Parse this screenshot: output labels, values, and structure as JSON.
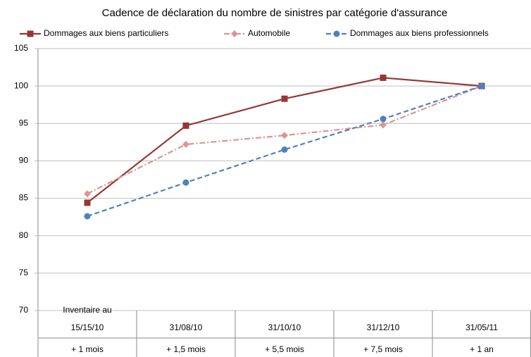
{
  "chart_data": {
    "type": "line",
    "title": "Cadence de déclaration du nombre de sinistres par catégorie d'assurance",
    "categories": [
      [
        "Inventaire au",
        "15/15/10"
      ],
      [
        "31/08/10"
      ],
      [
        "31/10/10"
      ],
      [
        "31/12/10"
      ],
      [
        "31/05/11"
      ]
    ],
    "periods": [
      "+ 1 mois",
      "+ 1,5 mois",
      "+ 5,5 mois",
      "+ 7,5 mois",
      "+ 1 an"
    ],
    "series": [
      {
        "name": "Dommages aux biens particuliers",
        "color": "#953735",
        "marker": "square",
        "dash": "solid",
        "values": [
          84.4,
          94.7,
          98.3,
          101.1,
          100
        ]
      },
      {
        "name": "Automobile",
        "color": "#d99694",
        "marker": "diamond",
        "dash": "dashdot",
        "values": [
          85.6,
          92.2,
          93.4,
          94.8,
          100
        ]
      },
      {
        "name": "Dommages aux biens professionnels",
        "color": "#4f81bd",
        "marker": "circle",
        "dash": "dashed",
        "values": [
          82.6,
          87.1,
          91.5,
          95.6,
          100
        ]
      }
    ],
    "ylim": [
      70,
      105
    ],
    "yticks": [
      70,
      75,
      80,
      85,
      90,
      95,
      100,
      105
    ],
    "grid": true,
    "legend": "top"
  }
}
